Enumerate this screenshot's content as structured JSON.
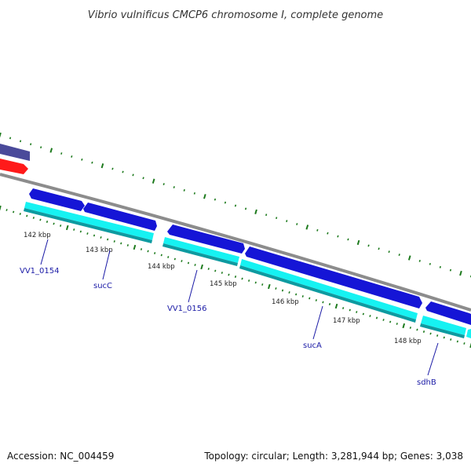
{
  "title": "Vibrio vulnificus CMCP6 chromosome I, complete genome",
  "footer": {
    "accession": "Accession: NC_004459",
    "summary": "Topology: circular; Length: 3,281,944 bp; Genes: 3,038"
  },
  "scale_labels": [
    "142 kbp",
    "143 kbp",
    "144 kbp",
    "145 kbp",
    "146 kbp",
    "147 kbp",
    "148 kbp"
  ],
  "gene_labels": [
    "VV1_0154",
    "sucC",
    "VV1_0156",
    "sucA",
    "sdhB"
  ],
  "colors": {
    "gene_blue": "#1515d6",
    "cds_cyan": "#16f2f2",
    "backbone": "#8c8c8c",
    "tick_green": "#1d7a1d",
    "gene_red": "#ff1a1a",
    "gene_purple": "#4a4a9a",
    "label_blue": "#1a1aa6"
  }
}
